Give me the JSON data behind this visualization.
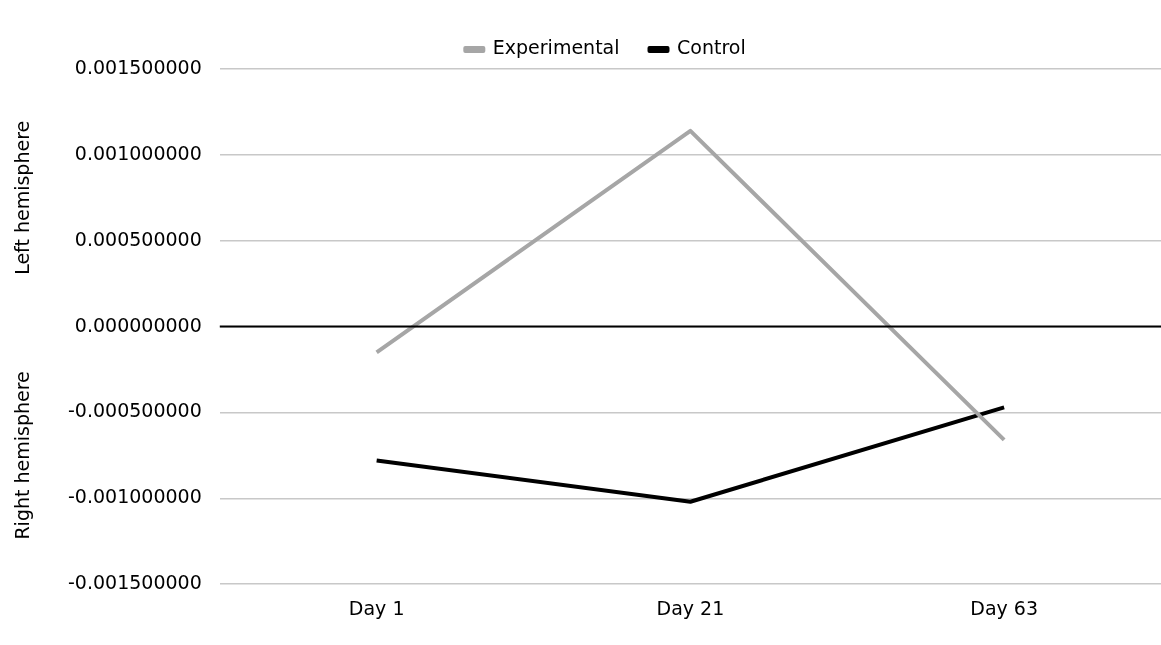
{
  "chart_data": {
    "type": "line",
    "categories": [
      "Day 1",
      "Day 21",
      "Day 63"
    ],
    "series": [
      {
        "name": "Experimental",
        "color": "#a6a6a6",
        "values": [
          -0.00015,
          0.00114,
          -0.00066
        ]
      },
      {
        "name": "Control",
        "color": "#000000",
        "values": [
          -0.00078,
          -0.00102,
          -0.00047
        ]
      }
    ],
    "ylim": [
      -0.0015,
      0.0015
    ],
    "yticks": [
      {
        "value": -0.0015,
        "label": "-0.001500000"
      },
      {
        "value": -0.001,
        "label": "-0.001000000"
      },
      {
        "value": -0.0005,
        "label": "-0.000500000"
      },
      {
        "value": 0,
        "label": "0.000000000"
      },
      {
        "value": 0.0005,
        "label": "0.000500000"
      },
      {
        "value": 0.001,
        "label": "0.001000000"
      },
      {
        "value": 0.0015,
        "label": "0.001500000"
      }
    ],
    "ref_lines": [
      {
        "axis": "y",
        "value": 0,
        "color": "#000000"
      }
    ],
    "annotations": [
      "Left hemisphere",
      "Right hemisphere"
    ],
    "grid": "y",
    "legend": "top",
    "marker": "none",
    "line_style": "solid"
  }
}
